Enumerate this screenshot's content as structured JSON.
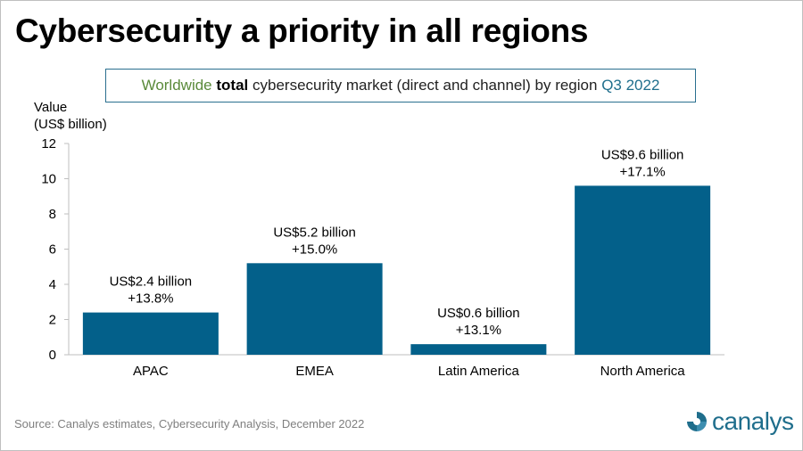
{
  "header": {
    "title": "Cybersecurity a priority in all regions",
    "subtitle": {
      "part1": "Worldwide",
      "part2": "total",
      "part3": "cybersecurity market (direct and channel) by region",
      "part4": "Q3 2022"
    }
  },
  "chart_data": {
    "type": "bar",
    "ylabel_line1": "Value",
    "ylabel_line2": "(US$ billion)",
    "categories": [
      "APAC",
      "EMEA",
      "Latin America",
      "North America"
    ],
    "values": [
      2.4,
      5.2,
      0.6,
      9.6
    ],
    "data_labels": [
      [
        "US$2.4 billion",
        "+13.8%"
      ],
      [
        "US$5.2 billion",
        "+15.0%"
      ],
      [
        "US$0.6 billion",
        "+13.1%"
      ],
      [
        "US$9.6 billion",
        "+17.1%"
      ]
    ],
    "ylim": [
      0,
      12
    ],
    "yticks": [
      0,
      2,
      4,
      6,
      8,
      10,
      12
    ],
    "grid": false,
    "bar_color": "#03608a"
  },
  "footer": {
    "source": "Source: Canalys estimates, Cybersecurity Analysis, December 2022",
    "logo_text": "canalys",
    "logo_color": "#1f6e8c"
  }
}
